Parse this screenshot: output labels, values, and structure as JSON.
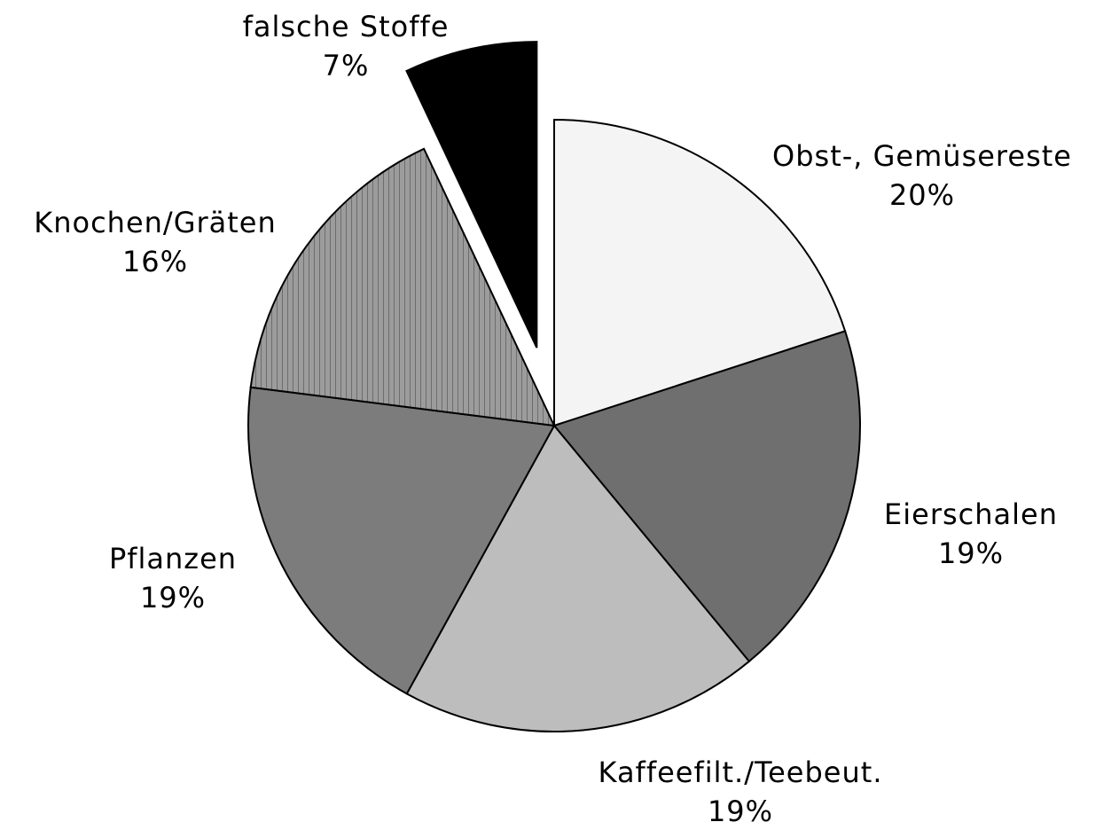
{
  "chart_data": {
    "type": "pie",
    "categories": [
      "Obst-, Gemüsereste",
      "Eierschalen",
      "Kaffeefilt./Teebeut.",
      "Pflanzen",
      "Knochen/Gräten",
      "falsche Stoffe"
    ],
    "values": [
      20,
      19,
      19,
      19,
      16,
      7
    ],
    "value_labels": [
      "20%",
      "19%",
      "19%",
      "19%",
      "16%",
      "7%"
    ],
    "colors": [
      "#f4f4f4",
      "#6f6f6f",
      "#bdbdbd",
      "#7c7c7c",
      "#9c9c9c",
      "#000000"
    ],
    "exploded": [
      5
    ]
  }
}
